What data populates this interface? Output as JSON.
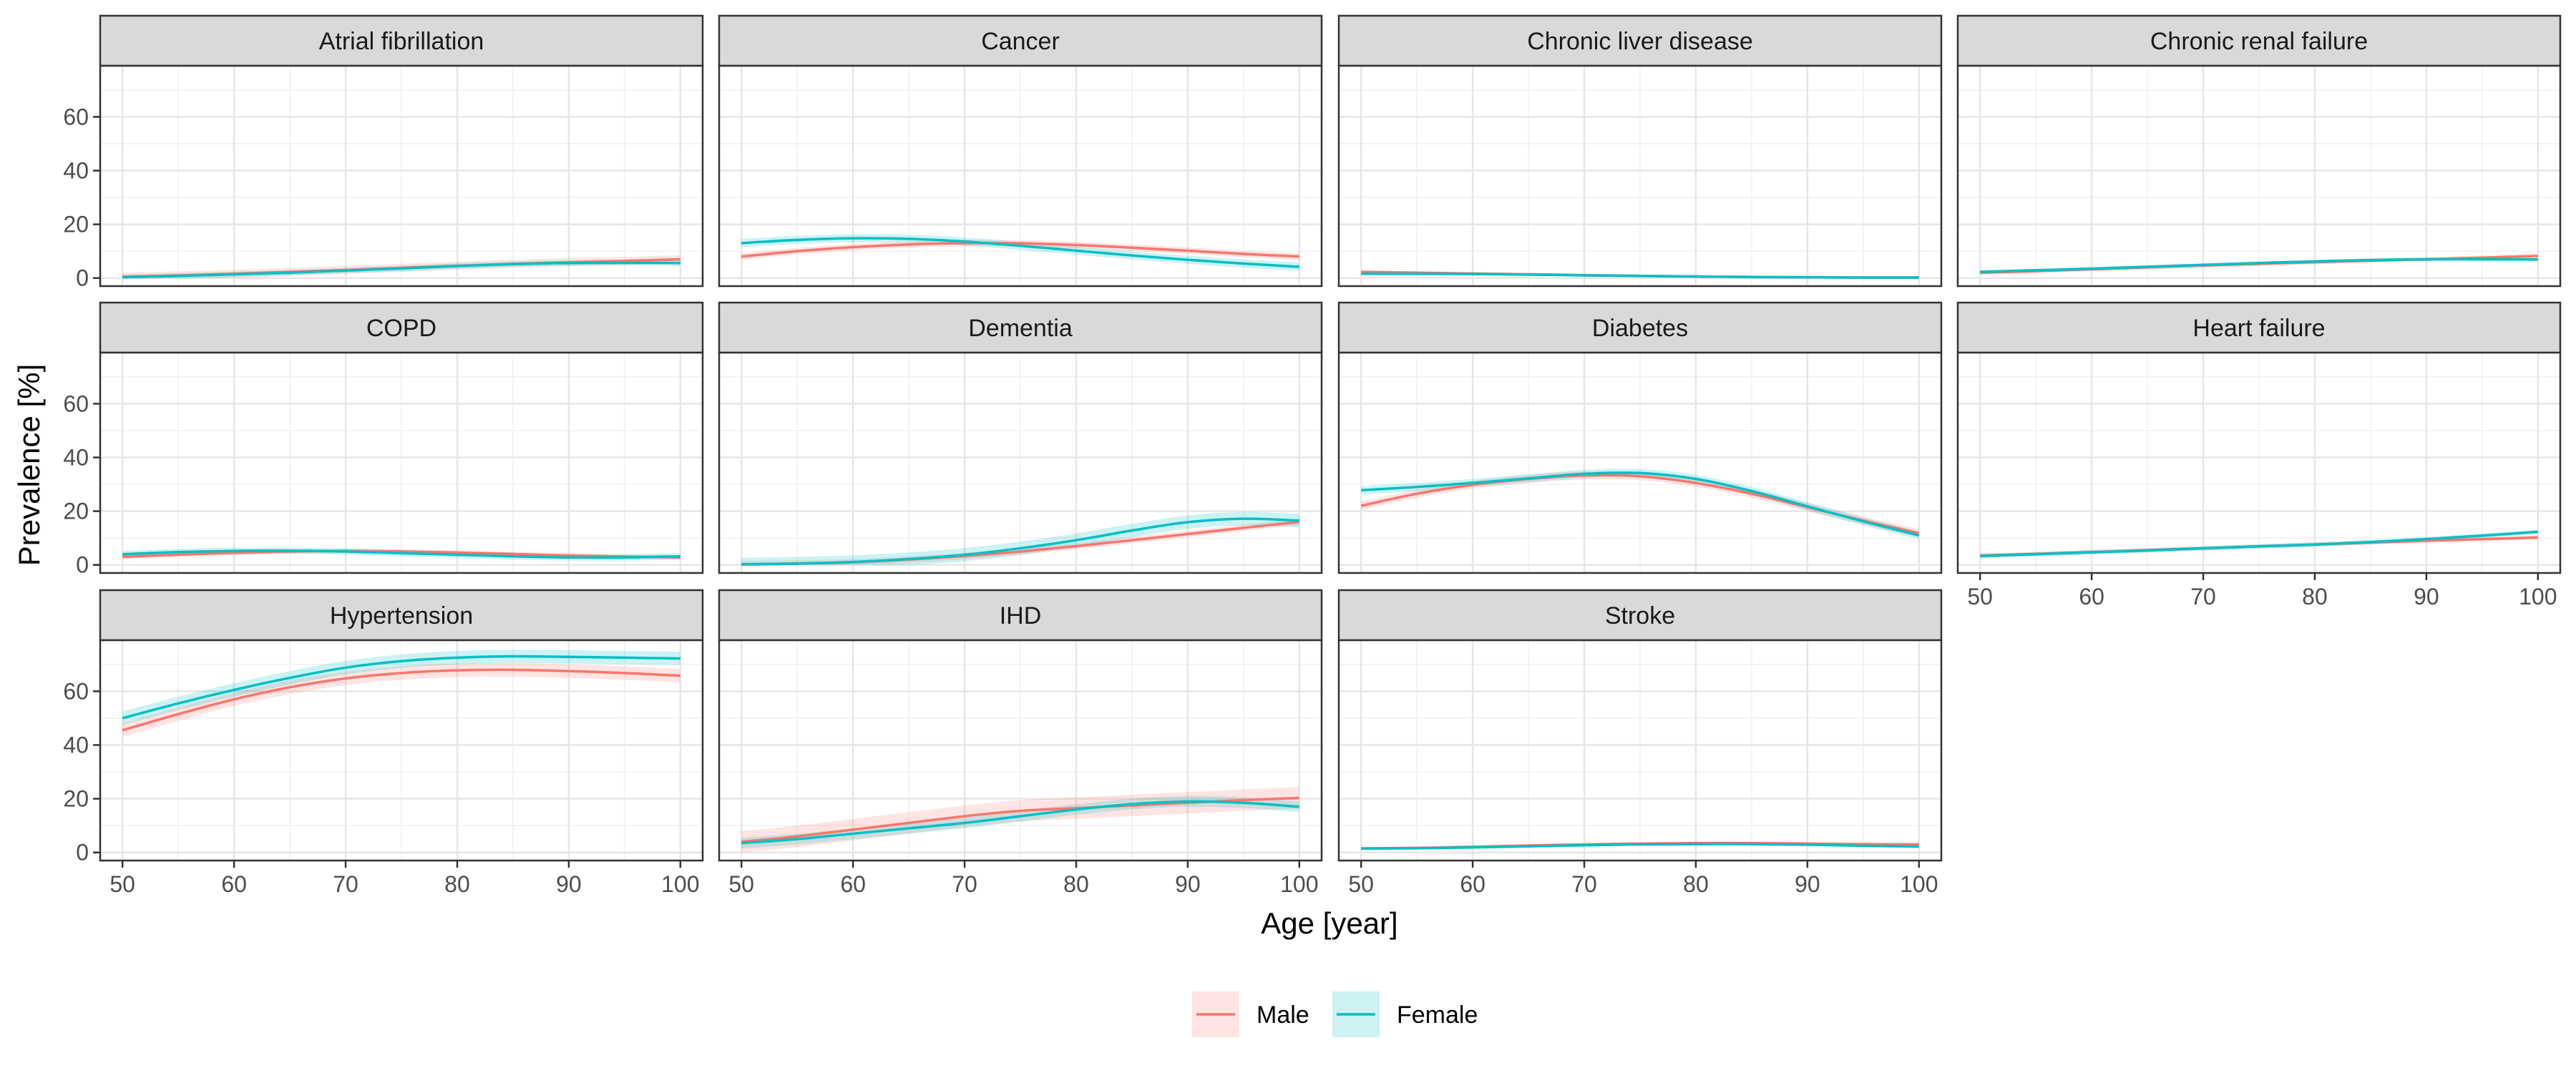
{
  "chart_data": {
    "type": "line",
    "xlabel": "Age [year]",
    "ylabel": "Prevalence [%]",
    "xlim": [
      48,
      102
    ],
    "ylim": [
      -3,
      79
    ],
    "x_ticks": [
      50,
      60,
      70,
      80,
      90,
      100
    ],
    "y_ticks": [
      0,
      20,
      40,
      60
    ],
    "grid": true,
    "layout": {
      "cols": 4,
      "rows": 3
    },
    "legend": {
      "position": "bottom",
      "items": [
        {
          "name": "Male",
          "color": "#F8766D"
        },
        {
          "name": "Female",
          "color": "#00BFC4"
        }
      ]
    },
    "x": [
      50,
      55,
      60,
      65,
      70,
      75,
      80,
      85,
      90,
      95,
      100
    ],
    "panels": [
      {
        "title": "Atrial fibrillation",
        "series": [
          {
            "name": "Male",
            "values": [
              0.5,
              1.0,
              1.6,
              2.3,
              3.0,
              3.8,
              4.6,
              5.3,
              5.9,
              6.4,
              7.0
            ],
            "band": 1.5
          },
          {
            "name": "Female",
            "values": [
              0.3,
              0.8,
              1.4,
              2.0,
              2.8,
              3.6,
              4.5,
              5.2,
              5.6,
              5.7,
              5.6
            ],
            "band": 1.0
          }
        ]
      },
      {
        "title": "Cancer",
        "series": [
          {
            "name": "Male",
            "values": [
              8.0,
              10.0,
              11.5,
              12.5,
              13.0,
              12.9,
              12.3,
              11.3,
              10.2,
              9.0,
              8.0
            ],
            "band": 1.2
          },
          {
            "name": "Female",
            "values": [
              13.0,
              14.2,
              14.8,
              14.6,
              13.6,
              12.0,
              10.2,
              8.4,
              6.8,
              5.4,
              4.2
            ],
            "band": 1.5
          }
        ]
      },
      {
        "title": "Chronic liver disease",
        "series": [
          {
            "name": "Male",
            "values": [
              2.3,
              2.0,
              1.7,
              1.4,
              1.1,
              0.8,
              0.6,
              0.4,
              0.3,
              0.2,
              0.2
            ],
            "band": 0.5
          },
          {
            "name": "Female",
            "values": [
              1.6,
              1.6,
              1.5,
              1.3,
              1.0,
              0.8,
              0.6,
              0.4,
              0.3,
              0.2,
              0.2
            ],
            "band": 0.4
          }
        ]
      },
      {
        "title": "Chronic renal failure",
        "series": [
          {
            "name": "Male",
            "values": [
              2.0,
              2.6,
              3.3,
              4.0,
              4.7,
              5.3,
              5.9,
              6.5,
              7.0,
              7.6,
              8.2
            ],
            "band": 0.8
          },
          {
            "name": "Female",
            "values": [
              2.3,
              2.9,
              3.5,
              4.2,
              4.9,
              5.6,
              6.2,
              6.7,
              7.0,
              7.0,
              6.9
            ],
            "band": 0.6
          }
        ]
      },
      {
        "title": "COPD",
        "series": [
          {
            "name": "Male",
            "values": [
              3.0,
              3.8,
              4.5,
              5.0,
              5.2,
              5.0,
              4.6,
              4.1,
              3.5,
              3.1,
              2.8
            ],
            "band": 0.8
          },
          {
            "name": "Female",
            "values": [
              4.0,
              4.8,
              5.2,
              5.3,
              5.0,
              4.4,
              3.8,
              3.2,
              2.8,
              2.8,
              3.2
            ],
            "band": 1.2
          }
        ]
      },
      {
        "title": "Dementia",
        "series": [
          {
            "name": "Male",
            "values": [
              0.2,
              0.5,
              1.0,
              2.0,
              3.3,
              5.0,
              7.0,
              9.2,
              11.5,
              13.8,
              16.0
            ],
            "band": 1.2
          },
          {
            "name": "Female",
            "values": [
              0.2,
              0.5,
              1.1,
              2.2,
              3.8,
              6.2,
              9.2,
              12.8,
              15.9,
              17.2,
              16.5
            ],
            "band": 2.5
          }
        ]
      },
      {
        "title": "Diabetes",
        "series": [
          {
            "name": "Male",
            "values": [
              22.0,
              26.5,
              29.8,
              32.0,
              33.3,
              33.0,
              30.5,
              26.5,
              21.5,
              16.5,
              11.8
            ],
            "band": 1.5
          },
          {
            "name": "Female",
            "values": [
              27.8,
              29.0,
              30.5,
              32.2,
              33.9,
              34.2,
              32.0,
              27.5,
              21.8,
              16.2,
              11.0
            ],
            "band": 1.5
          }
        ]
      },
      {
        "title": "Heart failure",
        "series": [
          {
            "name": "Male",
            "values": [
              3.5,
              4.1,
              4.8,
              5.5,
              6.2,
              6.9,
              7.6,
              8.3,
              9.0,
              9.6,
              10.2
            ],
            "band": 0.8
          },
          {
            "name": "Female",
            "values": [
              3.3,
              4.0,
              4.7,
              5.4,
              6.2,
              6.9,
              7.6,
              8.5,
              9.6,
              10.9,
              12.3
            ],
            "band": 0.8
          }
        ]
      },
      {
        "title": "Hypertension",
        "series": [
          {
            "name": "Male",
            "values": [
              45.5,
              51.5,
              57.0,
              61.5,
              64.8,
              66.8,
              67.8,
              68.0,
              67.5,
              66.8,
              65.8
            ],
            "band": 2.5
          },
          {
            "name": "Female",
            "values": [
              50.0,
              55.5,
              60.5,
              65.0,
              68.8,
              71.2,
              72.5,
              73.0,
              72.8,
              72.5,
              72.2
            ],
            "band": 2.5
          }
        ]
      },
      {
        "title": "IHD",
        "series": [
          {
            "name": "Male",
            "values": [
              4.0,
              6.0,
              8.5,
              11.0,
              13.5,
              15.5,
              16.5,
              17.5,
              18.5,
              19.5,
              20.3
            ],
            "band": 4.0
          },
          {
            "name": "Female",
            "values": [
              3.5,
              5.0,
              7.0,
              9.0,
              11.0,
              13.5,
              16.0,
              18.0,
              19.0,
              18.5,
              17.0
            ],
            "band": 2.0
          }
        ]
      },
      {
        "title": "Stroke",
        "series": [
          {
            "name": "Male",
            "values": [
              1.5,
              1.7,
              2.1,
              2.6,
              3.0,
              3.3,
              3.5,
              3.5,
              3.3,
              3.1,
              3.0
            ],
            "band": 0.6
          },
          {
            "name": "Female",
            "values": [
              1.5,
              1.6,
              1.9,
              2.3,
              2.7,
              3.0,
              3.1,
              3.1,
              2.9,
              2.5,
              2.2
            ],
            "band": 0.5
          }
        ]
      }
    ]
  }
}
